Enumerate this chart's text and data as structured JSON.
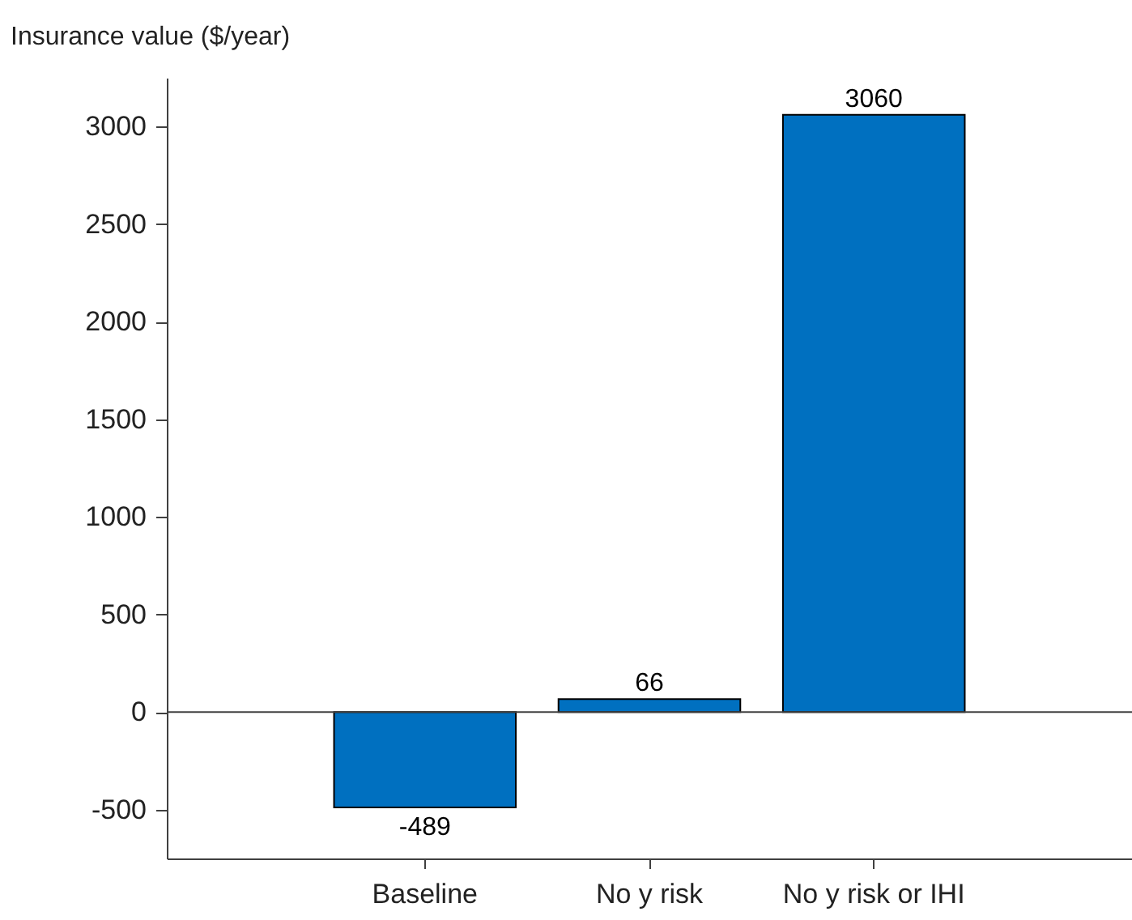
{
  "chart_data": {
    "type": "bar",
    "ylabel": "Insurance value ($/year)",
    "categories": [
      "Baseline",
      "No y risk",
      "No y risk or IHI"
    ],
    "values": [
      -489,
      66,
      3060
    ],
    "color": "#0070c0",
    "data_labels": true,
    "ylim": [
      -750,
      3250
    ],
    "yticks": [
      -500,
      0,
      500,
      1000,
      1500,
      2000,
      2500,
      3000
    ],
    "ref_lines": [
      {
        "axis": "y",
        "value": 0,
        "label": null,
        "color": "#404040"
      }
    ],
    "grid": false
  }
}
